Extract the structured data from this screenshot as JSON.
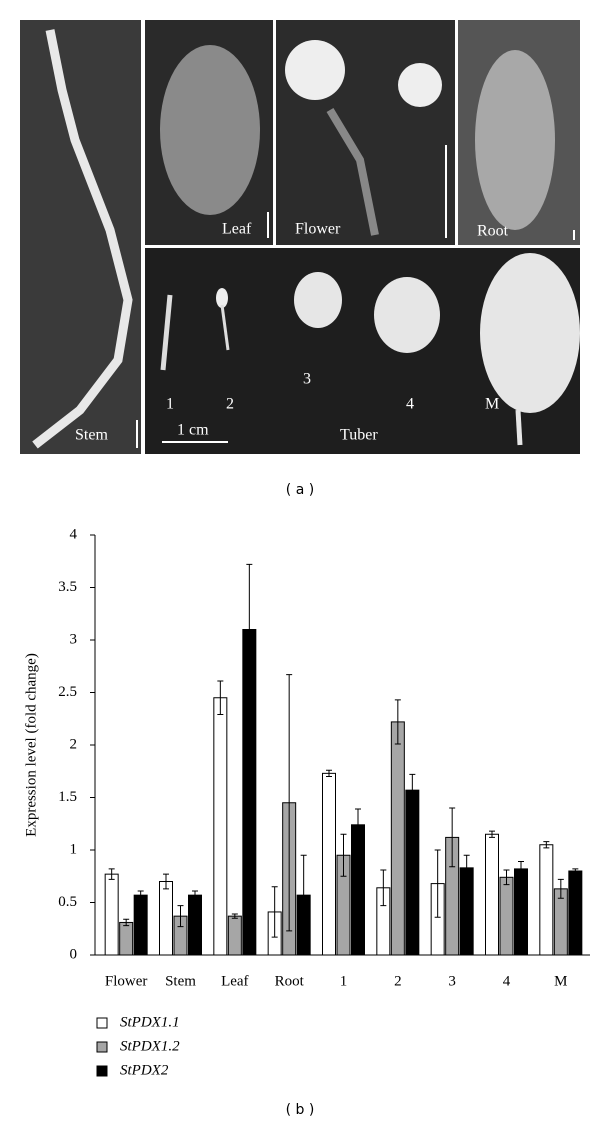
{
  "panel_a": {
    "stem": "Stem",
    "leaf": "Leaf",
    "flower": "Flower",
    "root": "Root",
    "tuber": "Tuber",
    "scale": "1 cm",
    "stages": [
      "1",
      "2",
      "3",
      "4",
      "M"
    ],
    "caption": "( a )"
  },
  "chart_data": {
    "type": "bar",
    "caption": "( b )",
    "y_label": "Expression level (fold change)",
    "categories": [
      "Flower",
      "Stem",
      "Leaf",
      "Root",
      "1",
      "2",
      "3",
      "4",
      "M"
    ],
    "series": [
      {
        "name": "StPDX1.1",
        "color": "#ffffff",
        "values": [
          0.77,
          0.7,
          2.45,
          0.41,
          1.73,
          0.64,
          0.68,
          1.15,
          1.05
        ],
        "errors": [
          0.05,
          0.07,
          0.16,
          0.24,
          0.03,
          0.17,
          0.32,
          0.03,
          0.03
        ]
      },
      {
        "name": "StPDX1.2",
        "color": "#a6a6a6",
        "values": [
          0.31,
          0.37,
          0.37,
          1.45,
          0.95,
          2.22,
          1.12,
          0.74,
          0.63
        ],
        "errors": [
          0.03,
          0.1,
          0.02,
          1.22,
          0.2,
          0.21,
          0.28,
          0.07,
          0.09
        ]
      },
      {
        "name": "StPDX2",
        "color": "#000000",
        "values": [
          0.57,
          0.57,
          3.1,
          0.57,
          1.24,
          1.57,
          0.83,
          0.82,
          0.8
        ],
        "errors": [
          0.04,
          0.04,
          0.62,
          0.38,
          0.15,
          0.15,
          0.12,
          0.07,
          0.02
        ]
      }
    ],
    "ylim": [
      0,
      4
    ],
    "yticks": [
      0,
      0.5,
      1,
      1.5,
      2,
      2.5,
      3,
      3.5,
      4
    ]
  }
}
